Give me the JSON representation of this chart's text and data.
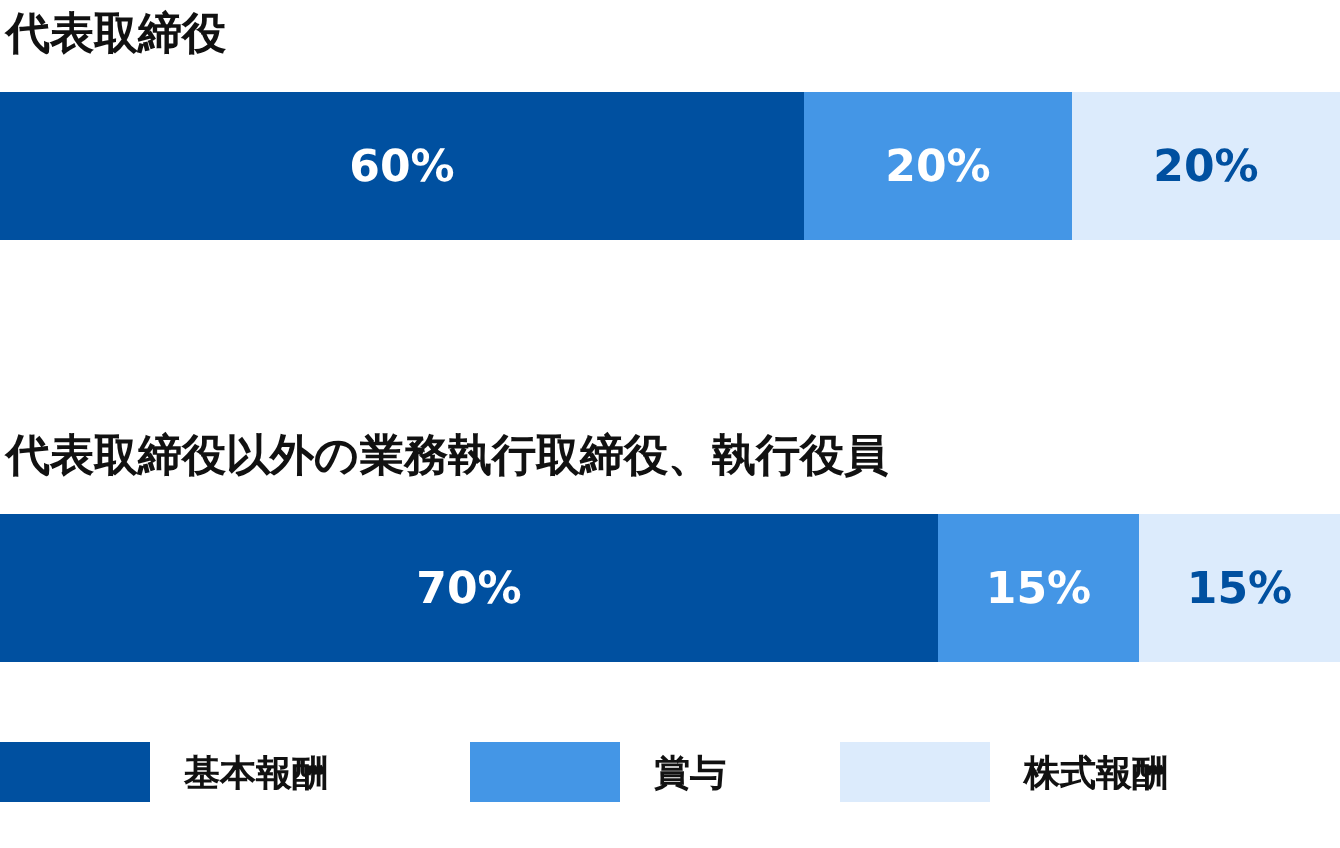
{
  "chart_data": [
    {
      "type": "bar",
      "title": "代表取締役",
      "orientation": "horizontal",
      "stacked": true,
      "categories": [
        null
      ],
      "xlim": [
        0,
        100
      ],
      "legend": false,
      "series": [
        {
          "color": "#0050a0",
          "values": [
            60
          ],
          "value_labels": [
            "60%"
          ]
        },
        {
          "color": "#4496e6",
          "values": [
            20
          ],
          "value_labels": [
            "20%"
          ]
        },
        {
          "color": "#dcebfc",
          "values": [
            20
          ],
          "value_labels": [
            "20%"
          ]
        }
      ]
    },
    {
      "type": "bar",
      "title": "代表取締役以外の業務執行取締役、執行役員",
      "orientation": "horizontal",
      "stacked": true,
      "categories": [
        null
      ],
      "xlim": [
        0,
        100
      ],
      "legend": "bottom",
      "series": [
        {
          "name": "基本報酬",
          "color": "#0050a0",
          "values": [
            70
          ],
          "value_labels": [
            "70%"
          ]
        },
        {
          "name": "賞与",
          "color": "#4496e6",
          "values": [
            15
          ],
          "value_labels": [
            "15%"
          ]
        },
        {
          "name": "株式報酬",
          "color": "#dcebfc",
          "values": [
            15
          ],
          "value_labels": [
            "15%"
          ]
        }
      ]
    }
  ]
}
